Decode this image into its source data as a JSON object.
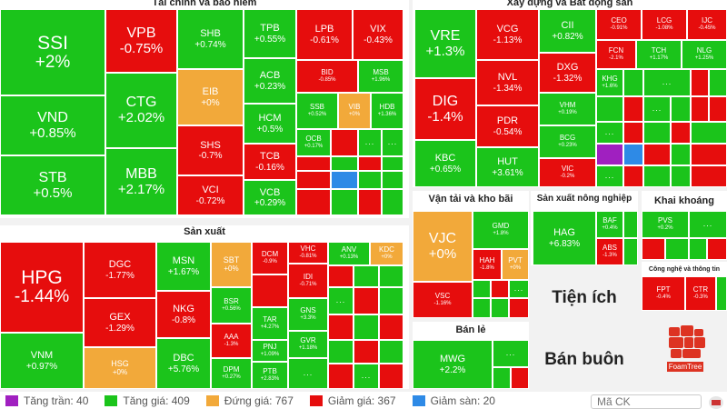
{
  "sections": {
    "finance": "Tài chính và bảo hiểm",
    "construction": "Xây dựng và Bất động sản",
    "manufacturing": "Sản xuất",
    "transport": "Vận tải và kho bãi",
    "agriculture": "Sản xuất nông nghiệp",
    "mining": "Khai khoáng",
    "tech": "Công nghệ và thông tin",
    "retail": "Bán lẻ",
    "utilities": "Tiện ích",
    "wholesale": "Bán buôn"
  },
  "tiles": {
    "ssi": {
      "code": "SSI",
      "change": "+2%"
    },
    "vnd": {
      "code": "VND",
      "change": "+0.85%"
    },
    "stb": {
      "code": "STB",
      "change": "+0.5%"
    },
    "vpb": {
      "code": "VPB",
      "change": "-0.75%"
    },
    "ctg": {
      "code": "CTG",
      "change": "+2.02%"
    },
    "mbb": {
      "code": "MBB",
      "change": "+2.17%"
    },
    "shb": {
      "code": "SHB",
      "change": "+0.74%"
    },
    "eib": {
      "code": "EIB",
      "change": "+0%"
    },
    "shs": {
      "code": "SHS",
      "change": "-0.7%"
    },
    "vci": {
      "code": "VCI",
      "change": "-0.72%"
    },
    "tpb": {
      "code": "TPB",
      "change": "+0.55%"
    },
    "acb": {
      "code": "ACB",
      "change": "+0.23%"
    },
    "hcm": {
      "code": "HCM",
      "change": "+0.5%"
    },
    "tcb": {
      "code": "TCB",
      "change": "-0.16%"
    },
    "vcb": {
      "code": "VCB",
      "change": "+0.29%"
    },
    "lpb": {
      "code": "LPB",
      "change": "-0.61%"
    },
    "vix": {
      "code": "VIX",
      "change": "-0.43%"
    },
    "bid": {
      "code": "BID",
      "change": "-0.85%"
    },
    "msb": {
      "code": "MSB",
      "change": "+1.96%"
    },
    "ssb": {
      "code": "SSB",
      "change": "+0.52%"
    },
    "vib": {
      "code": "VIB",
      "change": "+0%"
    },
    "hdb": {
      "code": "HDB",
      "change": "+1.36%"
    },
    "ocb": {
      "code": "OCB",
      "change": "+0.17%"
    },
    "vre": {
      "code": "VRE",
      "change": "+1.3%"
    },
    "dig": {
      "code": "DIG",
      "change": "-1.4%"
    },
    "kbc": {
      "code": "KBC",
      "change": "+0.65%"
    },
    "vcg": {
      "code": "VCG",
      "change": "-1.13%"
    },
    "nvl": {
      "code": "NVL",
      "change": "-1.34%"
    },
    "pdr": {
      "code": "PDR",
      "change": "-0.54%"
    },
    "hut": {
      "code": "HUT",
      "change": "+3.61%"
    },
    "cii": {
      "code": "CII",
      "change": "+0.82%"
    },
    "dxg": {
      "code": "DXG",
      "change": "-1.32%"
    },
    "vhm": {
      "code": "VHM",
      "change": "+0.19%"
    },
    "bcg": {
      "code": "BCG",
      "change": "+0.23%"
    },
    "vic": {
      "code": "VIC",
      "change": "-0.2%"
    },
    "ceo": {
      "code": "CEO",
      "change": "-0.91%"
    },
    "lcg": {
      "code": "LCG",
      "change": "-1.08%"
    },
    "ijc": {
      "code": "IJC",
      "change": "-0.45%"
    },
    "fcn": {
      "code": "FCN",
      "change": "-2.1%"
    },
    "tch": {
      "code": "TCH",
      "change": "+1.17%"
    },
    "nlg": {
      "code": "NLG",
      "change": "+1.25%"
    },
    "khg": {
      "code": "KHG",
      "change": "+1.6%"
    },
    "hpg": {
      "code": "HPG",
      "change": "-1.44%"
    },
    "vnm": {
      "code": "VNM",
      "change": "+0.97%"
    },
    "dgc": {
      "code": "DGC",
      "change": "-1.77%"
    },
    "gex": {
      "code": "GEX",
      "change": "-1.29%"
    },
    "hsg": {
      "code": "HSG",
      "change": "+0%"
    },
    "msn": {
      "code": "MSN",
      "change": "+1.67%"
    },
    "nkg": {
      "code": "NKG",
      "change": "-0.8%"
    },
    "dbc": {
      "code": "DBC",
      "change": "+5.76%"
    },
    "sbt": {
      "code": "SBT",
      "change": "+0%"
    },
    "bsr": {
      "code": "BSR",
      "change": "+0.56%"
    },
    "aaa": {
      "code": "AAA",
      "change": "-1.3%"
    },
    "dpm": {
      "code": "DPM",
      "change": "+0.27%"
    },
    "dcm": {
      "code": "DCM",
      "change": "-0.9%"
    },
    "tar": {
      "code": "TAR",
      "change": "+4.27%"
    },
    "pnj": {
      "code": "PNJ",
      "change": "+1.09%"
    },
    "ptb": {
      "code": "PTB",
      "change": "+2.83%"
    },
    "vhc": {
      "code": "VHC",
      "change": "-0.81%"
    },
    "idi": {
      "code": "IDI",
      "change": "-0.71%"
    },
    "gns": {
      "code": "GNS",
      "change": "+3.3%"
    },
    "gvr": {
      "code": "GVR",
      "change": "+1.18%"
    },
    "anv": {
      "code": "ANV",
      "change": "+0.13%"
    },
    "kdc": {
      "code": "KDC",
      "change": "+0%"
    },
    "vjc": {
      "code": "VJC",
      "change": "+0%"
    },
    "vsc": {
      "code": "VSC",
      "change": "-1.16%"
    },
    "gmd": {
      "code": "GMD",
      "change": "+1.8%"
    },
    "hah": {
      "code": "HAH",
      "change": "-1.8%"
    },
    "pvt": {
      "code": "PVT",
      "change": "+0%"
    },
    "hag": {
      "code": "HAG",
      "change": "+6.83%"
    },
    "baf": {
      "code": "BAF",
      "change": "+0.4%"
    },
    "abs": {
      "code": "ABS",
      "change": "-1.3%"
    },
    "pvs": {
      "code": "PVS",
      "change": "+0.2%"
    },
    "fpt": {
      "code": "FPT",
      "change": "-0.4%"
    },
    "ctr": {
      "code": "CTR",
      "change": "-0.3%"
    },
    "mwg": {
      "code": "MWG",
      "change": "+2.2%"
    }
  },
  "more": "...",
  "logo": {
    "text": "FoamTree"
  },
  "legend": {
    "ceiling": "Tăng trần: 40",
    "up": "Tăng giá: 409",
    "flat": "Đứng giá: 767",
    "down": "Giảm giá: 367",
    "floor": "Giảm sàn: 20"
  },
  "search": {
    "placeholder": "Mã CK"
  },
  "colors": {
    "up": "#1bc41b",
    "down": "#e60d0d",
    "flat": "#f2a93a",
    "floor": "#2e8ae6",
    "ceiling": "#a020c0"
  }
}
